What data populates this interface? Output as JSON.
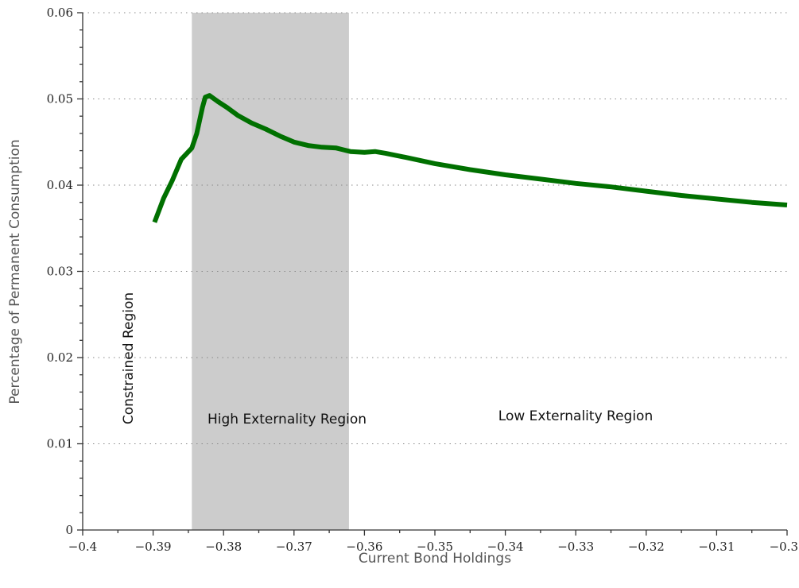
{
  "chart_data": {
    "type": "line",
    "xlabel": "Current Bond Holdings",
    "ylabel": "Percentage of Permanent Consumption",
    "xlim": [
      -0.4,
      -0.3
    ],
    "ylim": [
      0,
      0.06
    ],
    "x_tick_labels": [
      "−0.4",
      "−0.39",
      "−0.38",
      "−0.37",
      "−0.36",
      "−0.35",
      "−0.34",
      "−0.33",
      "−0.32",
      "−0.31",
      "−0.3"
    ],
    "x_tick_values": [
      -0.4,
      -0.39,
      -0.38,
      -0.37,
      -0.36,
      -0.35,
      -0.34,
      -0.33,
      -0.32,
      -0.31,
      -0.3
    ],
    "y_tick_labels": [
      "0",
      "0.01",
      "0.02",
      "0.03",
      "0.04",
      "0.05",
      "0.06"
    ],
    "y_tick_values": [
      0,
      0.01,
      0.02,
      0.03,
      0.04,
      0.05,
      0.06
    ],
    "grid": "horizontal dotted",
    "shaded_region": {
      "x_from": -0.3845,
      "x_to": -0.3622,
      "color": "#cccccc"
    },
    "annotations": {
      "constrained": "Constrained Region",
      "high": "High Externality Region",
      "low": "Low Externality Region"
    },
    "series": [
      {
        "color": "#007000",
        "x": [
          -0.3898,
          -0.3885,
          -0.3873,
          -0.386,
          -0.3852,
          -0.3845,
          -0.3838,
          -0.383,
          -0.3826,
          -0.382,
          -0.3808,
          -0.3795,
          -0.378,
          -0.376,
          -0.374,
          -0.372,
          -0.37,
          -0.368,
          -0.366,
          -0.364,
          -0.363,
          -0.362,
          -0.36,
          -0.3585,
          -0.357,
          -0.354,
          -0.35,
          -0.345,
          -0.34,
          -0.335,
          -0.33,
          -0.325,
          -0.32,
          -0.315,
          -0.31,
          -0.305,
          -0.3
        ],
        "y": [
          0.0357,
          0.0385,
          0.0405,
          0.043,
          0.0437,
          0.0443,
          0.046,
          0.049,
          0.0502,
          0.0504,
          0.0497,
          0.049,
          0.0481,
          0.0472,
          0.0465,
          0.0457,
          0.045,
          0.0446,
          0.0444,
          0.0443,
          0.0441,
          0.0439,
          0.0438,
          0.0439,
          0.0437,
          0.0432,
          0.0425,
          0.0418,
          0.0412,
          0.0407,
          0.0402,
          0.0398,
          0.0393,
          0.0388,
          0.0384,
          0.038,
          0.0377
        ]
      }
    ]
  }
}
